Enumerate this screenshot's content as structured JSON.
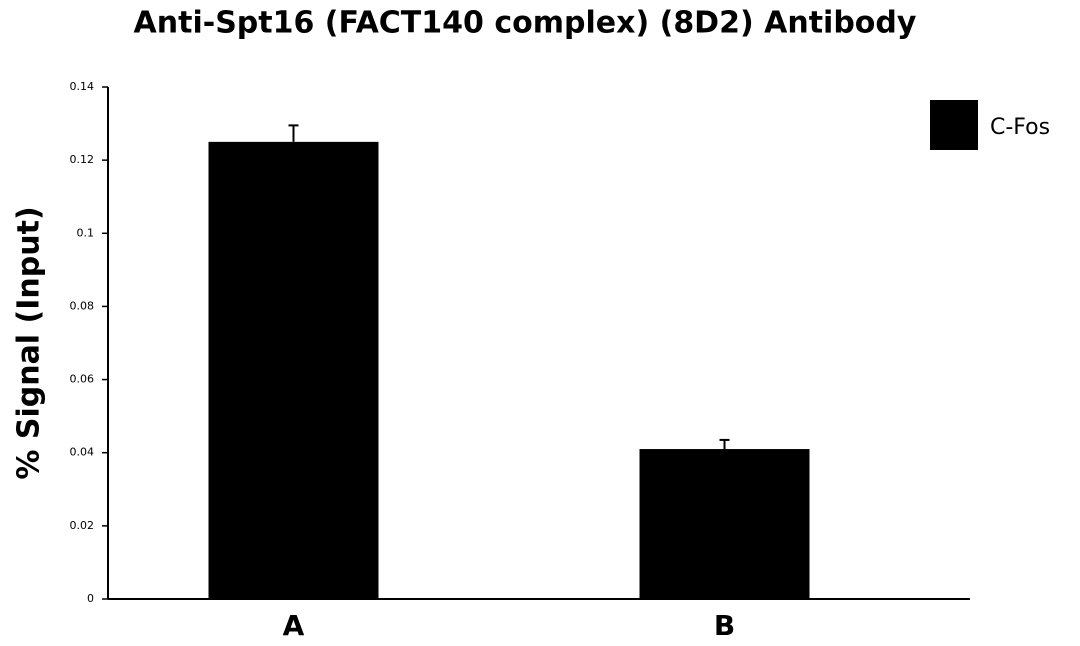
{
  "chart_data": {
    "type": "bar",
    "title": "Anti-Spt16 (FACT140 complex) (8D2) Antibody",
    "y_label": "% Signal (Input)",
    "categories": [
      "A",
      "B"
    ],
    "series": [
      {
        "name": "C-Fos",
        "color": "#000000",
        "values": [
          0.125,
          0.041
        ],
        "errors": [
          0.0045,
          0.0025
        ]
      }
    ],
    "ylim": [
      0,
      0.14
    ],
    "yticks": [
      0,
      0.02,
      0.04,
      0.06,
      0.08,
      0.1,
      0.12,
      0.14
    ],
    "legend": "upper right"
  }
}
